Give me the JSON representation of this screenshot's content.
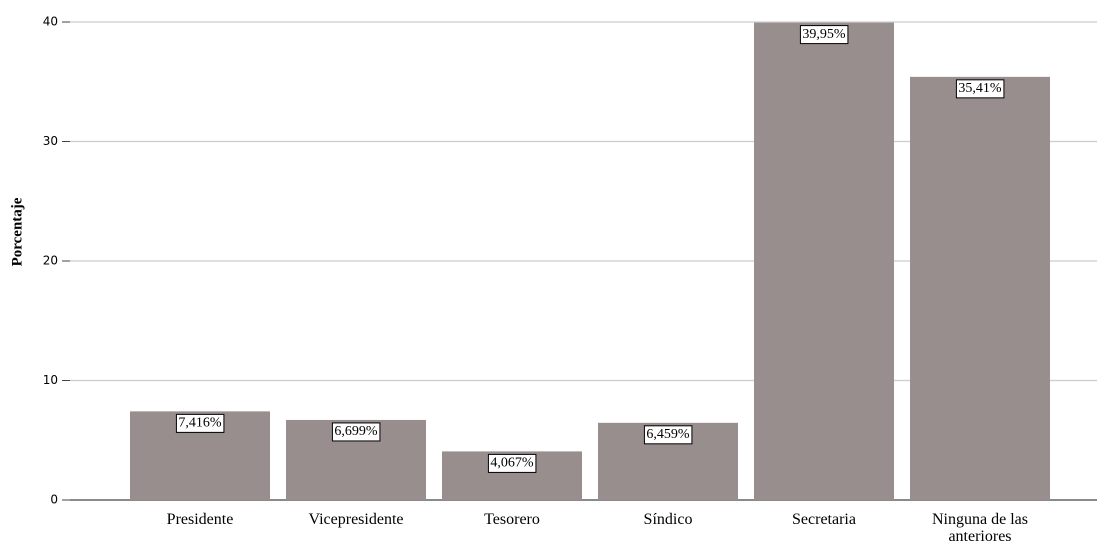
{
  "chart_data": {
    "type": "bar",
    "y_label": "Porcentaje",
    "categories": [
      "Presidente",
      "Vicepresidente",
      "Tesorero",
      "Síndico",
      "Secretaria",
      "Ninguna de las anteriores"
    ],
    "values": [
      7.416,
      6.699,
      4.067,
      6.459,
      39.95,
      35.41
    ],
    "value_labels": [
      "7,416%",
      "6,699%",
      "4,067%",
      "6,459%",
      "39,95%",
      "35,41%"
    ],
    "color": "#998e8e",
    "ylim": [
      0,
      40
    ],
    "yticks": [
      0,
      10,
      20,
      30,
      40
    ],
    "grid": true
  }
}
